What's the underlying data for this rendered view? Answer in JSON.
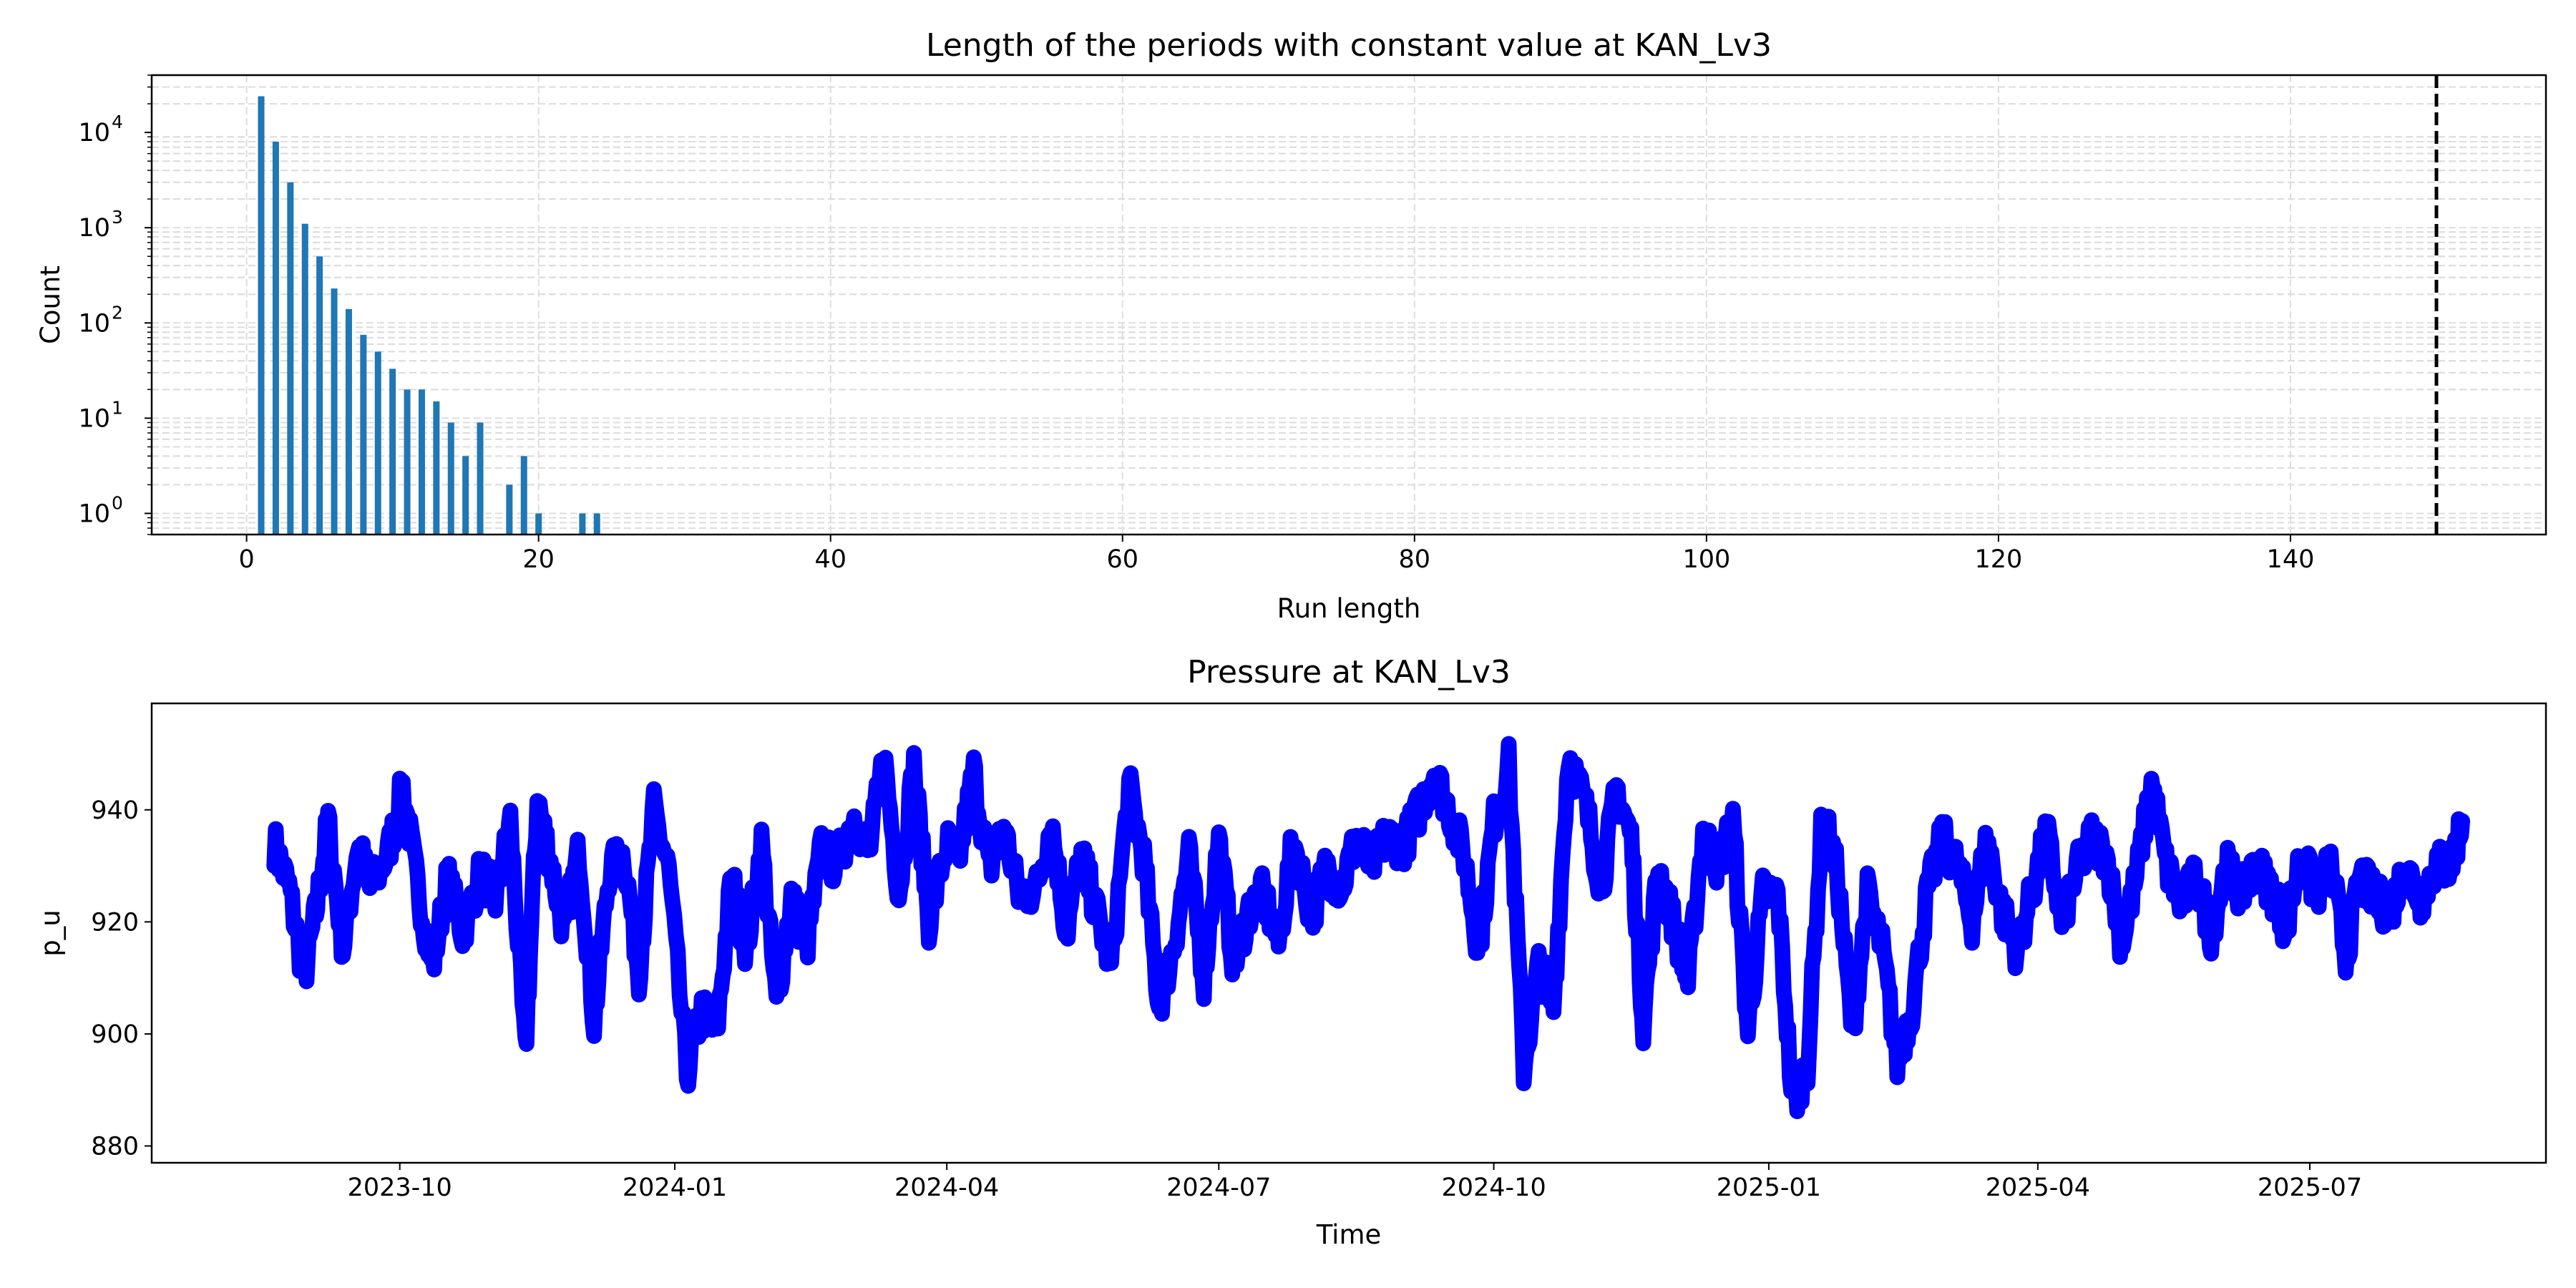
{
  "chart_data": [
    {
      "type": "bar",
      "title": "Length of the periods with constant value at KAN_Lv3",
      "xlabel": "Run length",
      "ylabel": "Count",
      "yscale": "log",
      "xlim": [
        -6.5,
        157.5
      ],
      "ylim": [
        0.6,
        40000
      ],
      "xticks": [
        0,
        20,
        40,
        60,
        80,
        100,
        120,
        140
      ],
      "yticks": [
        {
          "base": "10",
          "exp": "0",
          "value": 1
        },
        {
          "base": "10",
          "exp": "1",
          "value": 10
        },
        {
          "base": "10",
          "exp": "2",
          "value": 100
        },
        {
          "base": "10",
          "exp": "3",
          "value": 1000
        },
        {
          "base": "10",
          "exp": "4",
          "value": 10000
        }
      ],
      "grid": true,
      "bar_color": "#1f77b4",
      "categories": [
        1,
        2,
        3,
        4,
        5,
        6,
        7,
        8,
        9,
        10,
        11,
        12,
        13,
        14,
        15,
        16,
        18,
        19,
        20,
        23,
        24
      ],
      "values": [
        24000,
        8000,
        3000,
        1100,
        500,
        230,
        140,
        75,
        50,
        33,
        20,
        20,
        15,
        9,
        4,
        9,
        2,
        4,
        1,
        1,
        1
      ],
      "threshold_line": {
        "x": 150,
        "color": "#000000",
        "style": "dashed"
      }
    },
    {
      "type": "line",
      "title": "Pressure at KAN_Lv3",
      "xlabel": "Time",
      "ylabel": "p_u",
      "xlim": [
        "2023-07-10",
        "2025-09-18"
      ],
      "ylim": [
        877,
        959
      ],
      "xticks": [
        "2023-10",
        "2024-01",
        "2024-04",
        "2024-07",
        "2024-10",
        "2025-01",
        "2025-04",
        "2025-07"
      ],
      "yticks": [
        880,
        900,
        920,
        940
      ],
      "grid": false,
      "color": "#0000ff",
      "series": [
        {
          "x": [
            "2023-08-20",
            "2023-08-25",
            "2023-08-30",
            "2023-09-03",
            "2023-09-07",
            "2023-09-12",
            "2023-09-17",
            "2023-09-21",
            "2023-09-27",
            "2023-10-02",
            "2023-10-07",
            "2023-10-12",
            "2023-10-17",
            "2023-10-22",
            "2023-10-28",
            "2023-11-02",
            "2023-11-07",
            "2023-11-12",
            "2023-11-16",
            "2023-11-20",
            "2023-11-25",
            "2023-11-30",
            "2023-12-05",
            "2023-12-10",
            "2023-12-15",
            "2023-12-20",
            "2023-12-25",
            "2023-12-30",
            "2024-01-05",
            "2024-01-10",
            "2024-01-15",
            "2024-01-20",
            "2024-01-25",
            "2024-01-30",
            "2024-02-04",
            "2024-02-09",
            "2024-02-14",
            "2024-02-19",
            "2024-02-24",
            "2024-03-01",
            "2024-03-06",
            "2024-03-11",
            "2024-03-16",
            "2024-03-21",
            "2024-03-26",
            "2024-04-01",
            "2024-04-05",
            "2024-04-10",
            "2024-04-15",
            "2024-04-20",
            "2024-04-25",
            "2024-05-01",
            "2024-05-06",
            "2024-05-11",
            "2024-05-16",
            "2024-05-21",
            "2024-05-26",
            "2024-06-01",
            "2024-06-06",
            "2024-06-11",
            "2024-06-16",
            "2024-06-21",
            "2024-06-26",
            "2024-07-01",
            "2024-07-06",
            "2024-07-11",
            "2024-07-16",
            "2024-07-21",
            "2024-07-26",
            "2024-08-01",
            "2024-08-06",
            "2024-08-11",
            "2024-08-16",
            "2024-08-21",
            "2024-08-26",
            "2024-09-01",
            "2024-09-06",
            "2024-09-11",
            "2024-09-16",
            "2024-09-21",
            "2024-09-26",
            "2024-10-01",
            "2024-10-06",
            "2024-10-11",
            "2024-10-16",
            "2024-10-21",
            "2024-10-26",
            "2024-11-01",
            "2024-11-06",
            "2024-11-11",
            "2024-11-16",
            "2024-11-20",
            "2024-11-25",
            "2024-11-30",
            "2024-12-05",
            "2024-12-10",
            "2024-12-15",
            "2024-12-20",
            "2024-12-25",
            "2024-12-30",
            "2025-01-04",
            "2025-01-09",
            "2025-01-14",
            "2025-01-19",
            "2025-01-24",
            "2025-01-29",
            "2025-02-03",
            "2025-02-08",
            "2025-02-13",
            "2025-02-18",
            "2025-02-23",
            "2025-02-28",
            "2025-03-05",
            "2025-03-10",
            "2025-03-15",
            "2025-03-20",
            "2025-03-25",
            "2025-03-30",
            "2025-04-04",
            "2025-04-09",
            "2025-04-14",
            "2025-04-19",
            "2025-04-24",
            "2025-04-29",
            "2025-05-04",
            "2025-05-09",
            "2025-05-14",
            "2025-05-19",
            "2025-05-24",
            "2025-05-29",
            "2025-06-03",
            "2025-06-08",
            "2025-06-13",
            "2025-06-18",
            "2025-06-23",
            "2025-06-28",
            "2025-07-03",
            "2025-07-08",
            "2025-07-13",
            "2025-07-18",
            "2025-07-23",
            "2025-07-28",
            "2025-08-02",
            "2025-08-07",
            "2025-08-12",
            "2025-08-17",
            "2025-08-21"
          ],
          "y": [
            934,
            926,
            910,
            922,
            938,
            915,
            934,
            926,
            932,
            944,
            926,
            912,
            928,
            918,
            929,
            924,
            938,
            896,
            942,
            932,
            918,
            933,
            902,
            929,
            932,
            911,
            940,
            929,
            893,
            904,
            900,
            928,
            915,
            934,
            905,
            925,
            915,
            933,
            930,
            939,
            932,
            950,
            925,
            948,
            920,
            934,
            931,
            947,
            929,
            937,
            925,
            926,
            938,
            918,
            932,
            922,
            912,
            944,
            931,
            905,
            916,
            932,
            910,
            935,
            912,
            922,
            925,
            916,
            935,
            921,
            930,
            926,
            935,
            930,
            935,
            934,
            940,
            947,
            940,
            932,
            915,
            938,
            948,
            894,
            912,
            905,
            950,
            940,
            926,
            944,
            935,
            902,
            930,
            920,
            909,
            936,
            930,
            938,
            900,
            925,
            925,
            887,
            895,
            940,
            928,
            900,
            925,
            915,
            895,
            905,
            925,
            935,
            930,
            920,
            935,
            922,
            915,
            925,
            936,
            920,
            929,
            935,
            932,
            916,
            928,
            945,
            930,
            923,
            928,
            918,
            930,
            925,
            930,
            926,
            919,
            932,
            925,
            930,
            914,
            928,
            924,
            922,
            930,
            924,
            930,
            930,
            938
          ]
        }
      ]
    }
  ]
}
